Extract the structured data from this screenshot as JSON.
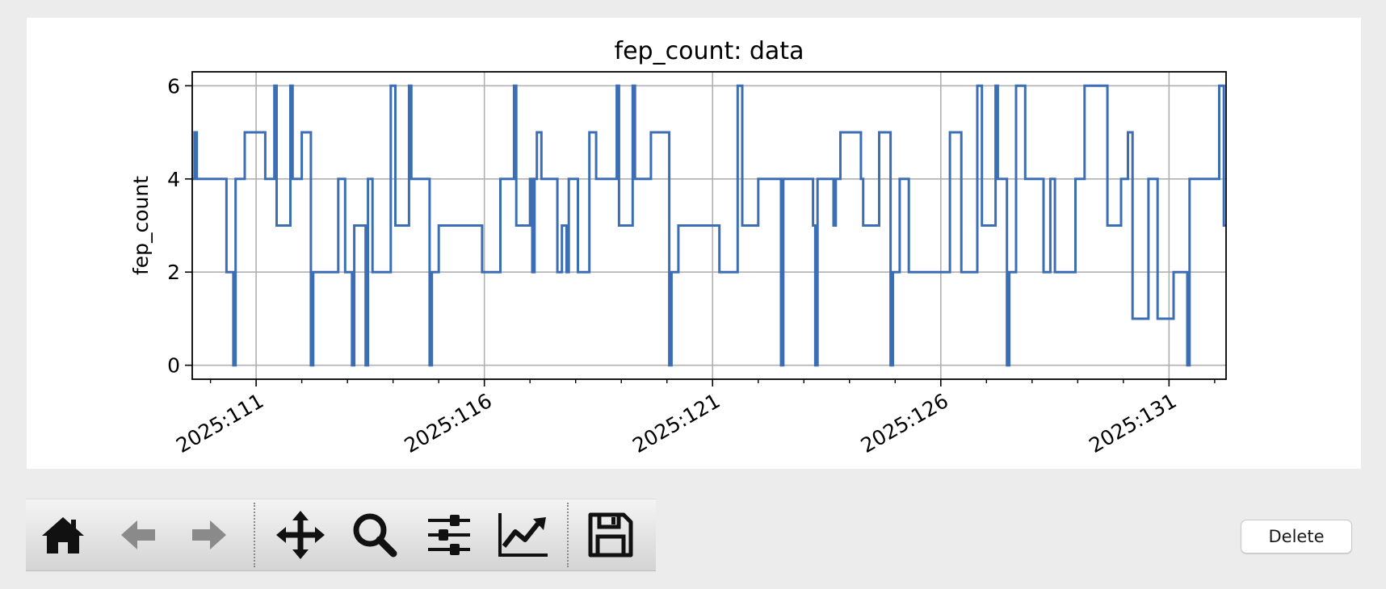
{
  "chart_data": {
    "type": "line",
    "title": "fep_count: data",
    "xlabel": "",
    "ylabel": "fep_count",
    "x_tick_labels": [
      "2025:111",
      "2025:116",
      "2025:121",
      "2025:126",
      "2025:131"
    ],
    "x_tick_values": [
      111,
      116,
      121,
      126,
      131
    ],
    "y_ticks": [
      0,
      2,
      4,
      6
    ],
    "xlim": [
      109.6,
      132.25
    ],
    "ylim": [
      -0.3,
      6.3
    ],
    "grid": true,
    "step": "post",
    "series": [
      {
        "color": "#3b6eb4",
        "points": [
          [
            109.6,
            4
          ],
          [
            109.65,
            5
          ],
          [
            109.7,
            4
          ],
          [
            110.0,
            4
          ],
          [
            110.35,
            2
          ],
          [
            110.5,
            0
          ],
          [
            110.55,
            4
          ],
          [
            110.75,
            5
          ],
          [
            111.2,
            4
          ],
          [
            111.4,
            6
          ],
          [
            111.45,
            3
          ],
          [
            111.75,
            6
          ],
          [
            111.8,
            4
          ],
          [
            112.0,
            5
          ],
          [
            112.2,
            0
          ],
          [
            112.25,
            2
          ],
          [
            112.8,
            4
          ],
          [
            112.95,
            2
          ],
          [
            113.1,
            0
          ],
          [
            113.15,
            3
          ],
          [
            113.4,
            0
          ],
          [
            113.45,
            4
          ],
          [
            113.55,
            2
          ],
          [
            113.95,
            6
          ],
          [
            114.05,
            3
          ],
          [
            114.35,
            6
          ],
          [
            114.4,
            4
          ],
          [
            114.8,
            0
          ],
          [
            114.85,
            2
          ],
          [
            115.0,
            3
          ],
          [
            115.95,
            2
          ],
          [
            116.35,
            4
          ],
          [
            116.65,
            6
          ],
          [
            116.7,
            3
          ],
          [
            117.0,
            4
          ],
          [
            117.05,
            2
          ],
          [
            117.1,
            4
          ],
          [
            117.15,
            5
          ],
          [
            117.25,
            4
          ],
          [
            117.55,
            4
          ],
          [
            117.6,
            2
          ],
          [
            117.7,
            3
          ],
          [
            117.8,
            2
          ],
          [
            117.85,
            4
          ],
          [
            118.05,
            2
          ],
          [
            118.3,
            5
          ],
          [
            118.45,
            4
          ],
          [
            118.9,
            6
          ],
          [
            118.95,
            3
          ],
          [
            119.25,
            6
          ],
          [
            119.3,
            4
          ],
          [
            119.65,
            5
          ],
          [
            120.05,
            0
          ],
          [
            120.1,
            2
          ],
          [
            120.25,
            3
          ],
          [
            121.15,
            2
          ],
          [
            121.55,
            6
          ],
          [
            121.65,
            3
          ],
          [
            122.0,
            4
          ],
          [
            122.5,
            0
          ],
          [
            122.55,
            4
          ],
          [
            123.2,
            3
          ],
          [
            123.25,
            0
          ],
          [
            123.3,
            4
          ],
          [
            123.65,
            3
          ],
          [
            123.7,
            4
          ],
          [
            123.8,
            5
          ],
          [
            124.25,
            4
          ],
          [
            124.3,
            3
          ],
          [
            124.65,
            5
          ],
          [
            124.9,
            0
          ],
          [
            124.95,
            2
          ],
          [
            125.1,
            4
          ],
          [
            125.3,
            2
          ],
          [
            126.2,
            5
          ],
          [
            126.45,
            2
          ],
          [
            126.8,
            6
          ],
          [
            126.9,
            3
          ],
          [
            127.2,
            6
          ],
          [
            127.25,
            4
          ],
          [
            127.45,
            0
          ],
          [
            127.5,
            2
          ],
          [
            127.65,
            6
          ],
          [
            127.85,
            4
          ],
          [
            128.25,
            2
          ],
          [
            128.4,
            4
          ],
          [
            128.5,
            2
          ],
          [
            128.95,
            4
          ],
          [
            129.15,
            6
          ],
          [
            129.65,
            3
          ],
          [
            129.95,
            4
          ],
          [
            130.1,
            5
          ],
          [
            130.2,
            1
          ],
          [
            130.55,
            4
          ],
          [
            130.75,
            1
          ],
          [
            131.1,
            2
          ],
          [
            131.4,
            0
          ],
          [
            131.45,
            4
          ],
          [
            132.1,
            6
          ],
          [
            132.2,
            3
          ],
          [
            132.25,
            3
          ]
        ]
      }
    ]
  },
  "toolbar": {
    "buttons": [
      {
        "icon": "home-icon"
      },
      {
        "icon": "back-arrow-icon"
      },
      {
        "icon": "forward-arrow-icon"
      },
      {
        "icon": "pan-icon"
      },
      {
        "icon": "zoom-icon"
      },
      {
        "icon": "configure-subplots-icon"
      },
      {
        "icon": "edit-axes-icon"
      },
      {
        "icon": "save-icon"
      }
    ]
  },
  "delete_button": {
    "label": "Delete"
  }
}
